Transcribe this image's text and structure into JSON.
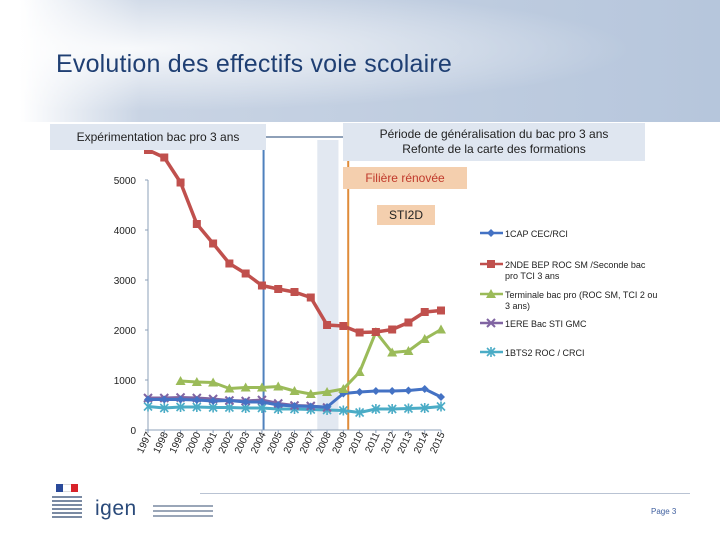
{
  "title": "Evolution des effectifs voie scolaire",
  "annotations": {
    "experimentation": "Expérimentation bac pro 3 ans",
    "generalisation_line1": "Période de généralisation du bac pro 3 ans",
    "generalisation_line2": "Refonte de la carte des formations",
    "filiere": "Filière rénovée",
    "sti2d": "STI2D"
  },
  "colors": {
    "series1": "#4472c4",
    "series2": "#c0504d",
    "series3": "#9bbb59",
    "series4": "#8064a2",
    "series5": "#4bacc6",
    "vline_blue": "#4f81bd",
    "vline_orange": "#e08c3a",
    "band_fill": "#dfe6f0",
    "axis_line": "#8ea0b8",
    "separator_line": "#8ea0b8"
  },
  "chart_data": {
    "type": "line",
    "title": "Evolution des effectifs voie scolaire",
    "xlabel": "",
    "ylabel": "",
    "ylim": [
      0,
      5800
    ],
    "yticks": [
      0,
      1000,
      2000,
      3000,
      4000,
      5000
    ],
    "grid": false,
    "legend_position": "right",
    "categories": [
      "1997",
      "1998",
      "1999",
      "2000",
      "2001",
      "2002",
      "2003",
      "2004",
      "2005",
      "2006",
      "2007",
      "2008",
      "2009",
      "2010",
      "2011",
      "2012",
      "2013",
      "2014",
      "2015"
    ],
    "x_values": [
      1997,
      1998,
      1999,
      2000,
      2001,
      2002,
      2003,
      2004,
      2005,
      2006,
      2007,
      2008,
      2009,
      2010,
      2011,
      2012,
      2013,
      2014,
      2015
    ],
    "series": [
      {
        "name": "1CAP CEC/RCI",
        "marker": "diamond",
        "color_key": "series1",
        "values": [
          610,
          610,
          610,
          600,
          580,
          590,
          560,
          560,
          500,
          480,
          470,
          460,
          730,
          760,
          780,
          780,
          790,
          820,
          660
        ]
      },
      {
        "name": "2NDE BEP ROC SM /Seconde bac pro TCI 3 ans",
        "marker": "square",
        "color_key": "series2",
        "values": [
          5600,
          5450,
          4950,
          4120,
          3730,
          3330,
          3130,
          2890,
          2820,
          2760,
          2650,
          2100,
          2080,
          1950,
          1960,
          2010,
          2150,
          2360,
          2390
        ]
      },
      {
        "name": "Terminale bac pro (ROC SM, TCI 2 ou 3 ans)",
        "marker": "triangle",
        "color_key": "series3",
        "values": [
          null,
          null,
          980,
          960,
          950,
          830,
          850,
          850,
          870,
          780,
          720,
          760,
          820,
          1160,
          1960,
          1550,
          1580,
          1820,
          2010
        ]
      },
      {
        "name": "1ERE Bac STI GMC",
        "marker": "x",
        "color_key": "series4",
        "values": [
          640,
          640,
          650,
          640,
          620,
          590,
          580,
          600,
          530,
          490,
          480,
          450,
          null,
          null,
          null,
          null,
          null,
          null,
          null
        ]
      },
      {
        "name": "1BTS2 ROC / CRCI",
        "marker": "asterisk",
        "color_key": "series5",
        "values": [
          470,
          440,
          460,
          460,
          450,
          450,
          440,
          440,
          420,
          420,
          410,
          400,
          390,
          350,
          420,
          420,
          430,
          440,
          470
        ]
      }
    ],
    "vertical_markers": [
      {
        "label": "Expérimentation bac pro 3 ans",
        "at_year": 2004.1,
        "color_key": "vline_blue"
      },
      {
        "label": "Période de généralisation du bac pro 3 ans",
        "at_year": 2009.3,
        "color_key": "vline_orange"
      }
    ],
    "shaded_band": {
      "from_year": 2007.4,
      "to_year": 2008.7
    }
  },
  "footer": {
    "logo_text": "igen",
    "page": "Page 3"
  }
}
